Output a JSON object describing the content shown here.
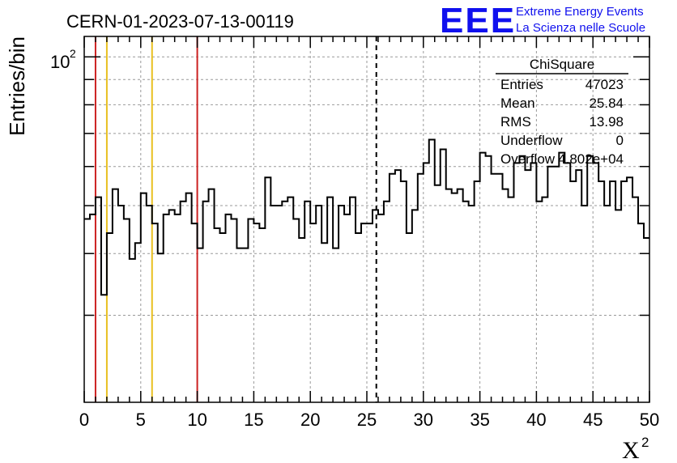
{
  "chart_data": {
    "type": "histogram",
    "title": "CERN-01-2023-07-13-00119",
    "xlabel": "X",
    "xlabel_superscript": "2",
    "ylabel": "Entries/bin",
    "xlim": [
      0,
      50
    ],
    "ylim": [
      20,
      110
    ],
    "yscale": "log",
    "grid": true,
    "x_ticks": [
      "0",
      "5",
      "10",
      "15",
      "20",
      "25",
      "30",
      "35",
      "40",
      "45",
      "50"
    ],
    "y_tick_label_base": "10",
    "y_tick_label_exp": "2",
    "bin_width": 0.5,
    "bin_start": 0,
    "values": [
      47,
      48,
      52,
      33,
      44,
      54,
      50,
      47,
      39,
      42,
      53,
      50,
      46,
      40,
      48,
      49,
      48,
      51,
      53,
      46,
      41,
      51,
      54,
      45,
      44,
      48,
      47,
      41,
      41,
      47,
      46,
      45,
      57,
      50,
      50,
      51,
      52,
      47,
      43,
      51,
      46,
      50,
      42,
      52,
      41,
      50,
      48,
      52,
      44,
      46,
      46,
      49,
      48,
      51,
      58,
      59,
      56,
      44,
      49,
      58,
      61,
      68,
      55,
      65,
      54,
      53,
      54,
      51,
      50,
      56,
      64,
      63,
      58,
      58,
      54,
      52,
      61,
      63,
      59,
      61,
      51,
      52,
      60,
      60,
      64,
      61,
      56,
      59,
      50,
      63,
      61,
      56,
      50,
      56,
      49,
      56,
      57,
      52,
      46,
      43
    ],
    "vertical_lines": [
      {
        "x": 1,
        "color": "#cc2222",
        "style": "solid"
      },
      {
        "x": 2,
        "color": "#e8c020",
        "style": "solid"
      },
      {
        "x": 6,
        "color": "#e8c020",
        "style": "solid"
      },
      {
        "x": 10,
        "color": "#cc2222",
        "style": "solid"
      },
      {
        "x": 25.84,
        "color": "#000000",
        "style": "dashed"
      }
    ],
    "stats": {
      "title": "ChiSquare",
      "rows": [
        {
          "label": "Entries",
          "value": "47023"
        },
        {
          "label": "Mean",
          "value": "25.84"
        },
        {
          "label": "RMS",
          "value": "13.98"
        },
        {
          "label": "Underflow",
          "value": "0"
        },
        {
          "label": "Overflow",
          "value": "4.802e+04"
        }
      ]
    }
  },
  "logo": {
    "mark": "EEE",
    "line1": "Extreme Energy Events",
    "line2": "La Scienza nelle Scuole",
    "color": "#1010ee"
  },
  "colors": {
    "histogram": "#000000",
    "grid": "#999999",
    "red_line": "#cc2222",
    "yellow_line": "#e8c020"
  }
}
